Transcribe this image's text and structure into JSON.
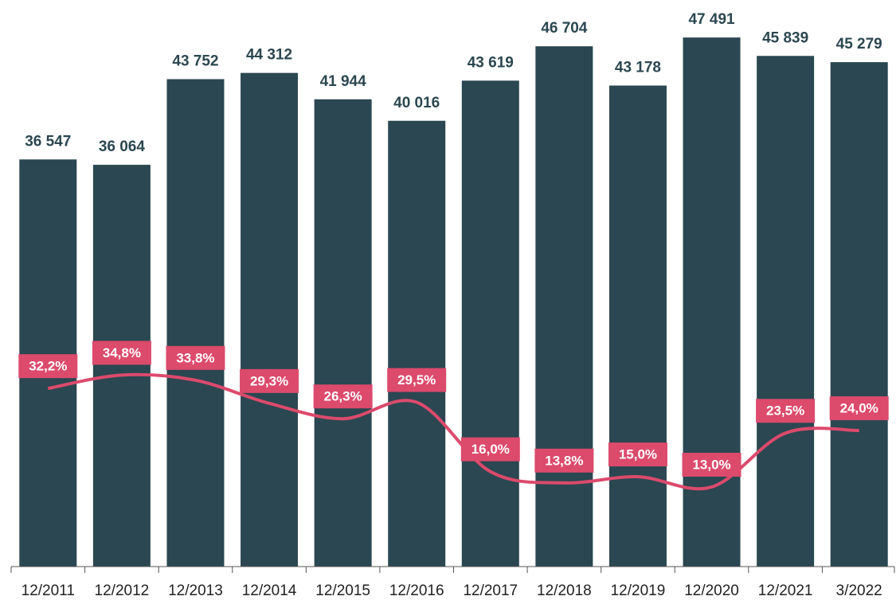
{
  "chart_data": {
    "type": "bar",
    "categories": [
      "12/2011",
      "12/2012",
      "12/2013",
      "12/2014",
      "12/2015",
      "12/2016",
      "12/2017",
      "12/2018",
      "12/2019",
      "12/2020",
      "12/2021",
      "3/2022"
    ],
    "series": [
      {
        "type": "bar",
        "color": "#2b4751",
        "values": [
          36547,
          36064,
          43752,
          44312,
          41944,
          40016,
          43619,
          46704,
          43178,
          47491,
          45839,
          45279
        ],
        "value_labels": [
          "36 547",
          "36 064",
          "43 752",
          "44 312",
          "41 944",
          "40 016",
          "43 619",
          "46 704",
          "43 178",
          "47 491",
          "45 839",
          "45 279"
        ]
      },
      {
        "type": "line",
        "axis": "y2",
        "color": "#dc4a6c",
        "values": [
          32.2,
          34.8,
          33.8,
          29.3,
          26.3,
          29.5,
          16.0,
          13.8,
          15.0,
          13.0,
          23.5,
          24.0
        ],
        "value_labels": [
          "32,2%",
          "34,8%",
          "33,8%",
          "29,3%",
          "26,3%",
          "29,5%",
          "16,0%",
          "13,8%",
          "15,0%",
          "13,0%",
          "23,5%",
          "24,0%"
        ]
      }
    ],
    "ylim": [
      0,
      50000
    ],
    "y2lim": [
      -2.5,
      106
    ]
  }
}
